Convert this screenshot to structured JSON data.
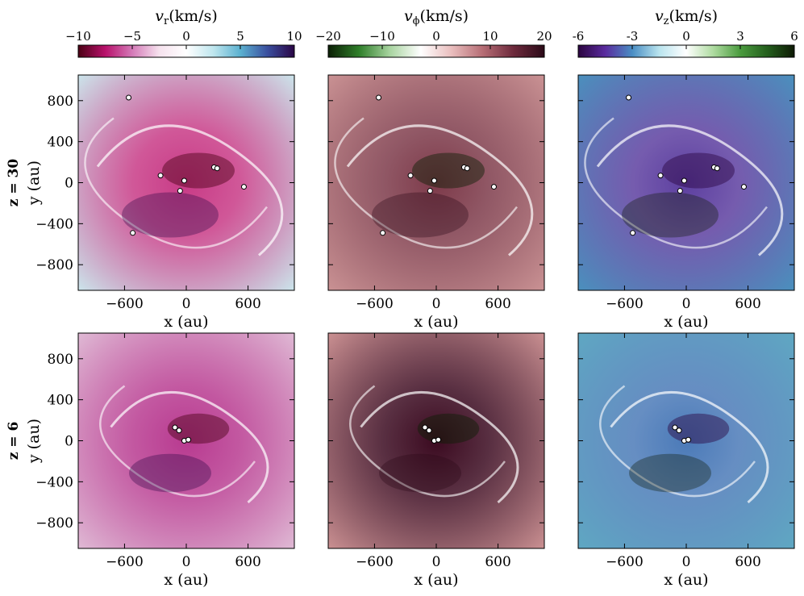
{
  "chart_data": {
    "type": "heatmap",
    "xlabel": "x (au)",
    "ylabel": "y (au)",
    "xlim": [
      -1050,
      1050
    ],
    "ylim": [
      -1050,
      1050
    ],
    "xticks": [
      "−600",
      "0",
      "600"
    ],
    "xtick_values": [
      -600,
      0,
      600
    ],
    "yticks": [
      "800",
      "400",
      "0",
      "−400",
      "−800"
    ],
    "ytick_values": [
      800,
      400,
      0,
      -400,
      -800
    ],
    "rows": [
      {
        "label": "z = 30"
      },
      {
        "label": "z = 6"
      }
    ],
    "columns": [
      {
        "name": "vr",
        "title_sym": "v",
        "title_sub": "r",
        "title_unit": "(km/s)",
        "ticks": [
          "−10",
          "−5",
          "0",
          "5",
          "10"
        ],
        "tick_values": [
          -10,
          -5,
          0,
          5,
          10
        ],
        "range": [
          -10,
          10
        ],
        "colors": [
          "#4a0013",
          "#b8116b",
          "#d47ab8",
          "#f6e2ee",
          "#ffffff",
          "#bfe6ee",
          "#5bb1d0",
          "#3a4f9f",
          "#2a0545"
        ]
      },
      {
        "name": "vphi",
        "title_sym": "v",
        "title_sub": "ϕ",
        "title_unit": "(km/s)",
        "ticks": [
          "−20",
          "−10",
          "0",
          "10",
          "20"
        ],
        "tick_values": [
          -20,
          -10,
          0,
          10,
          20
        ],
        "range": [
          -20,
          20
        ],
        "colors": [
          "#0b1f05",
          "#2f7f2a",
          "#a8d4a0",
          "#ffffff",
          "#e9bdbd",
          "#b66d75",
          "#6d2a3c",
          "#2b0a18"
        ]
      },
      {
        "name": "vz",
        "title_sym": "v",
        "title_sub": "z",
        "title_unit": "(km/s)",
        "ticks": [
          "-6",
          "-3",
          "0",
          "3",
          "6"
        ],
        "tick_values": [
          -6,
          -3,
          0,
          3,
          6
        ],
        "range": [
          -6,
          6
        ],
        "colors": [
          "#2b0540",
          "#5a2b9e",
          "#4a8ec4",
          "#b9e4ee",
          "#ffffff",
          "#aedba0",
          "#4a9b3e",
          "#245f1d",
          "#0e1a05"
        ]
      }
    ],
    "sinks": [
      [
        [
          -560,
          830
        ],
        [
          -250,
          70
        ],
        [
          -20,
          20
        ],
        [
          -60,
          -80
        ],
        [
          270,
          150
        ],
        [
          300,
          140
        ],
        [
          560,
          -40
        ],
        [
          -520,
          -490
        ]
      ],
      [
        [
          -110,
          130
        ],
        [
          -70,
          100
        ],
        [
          -20,
          0
        ],
        [
          20,
          10
        ]
      ]
    ],
    "panel_bg": [
      [
        "#cbe3ea",
        "#c99193",
        "#4b8fbd"
      ],
      [
        "#dfb8d4",
        "#c98f91",
        "#5fa7c2"
      ]
    ],
    "panel_center": [
      [
        "#c83a86",
        "#7d3a4a",
        "#5d3fa0"
      ],
      [
        "#b83a90",
        "#3b0a20",
        "#4b7ab8"
      ]
    ]
  }
}
